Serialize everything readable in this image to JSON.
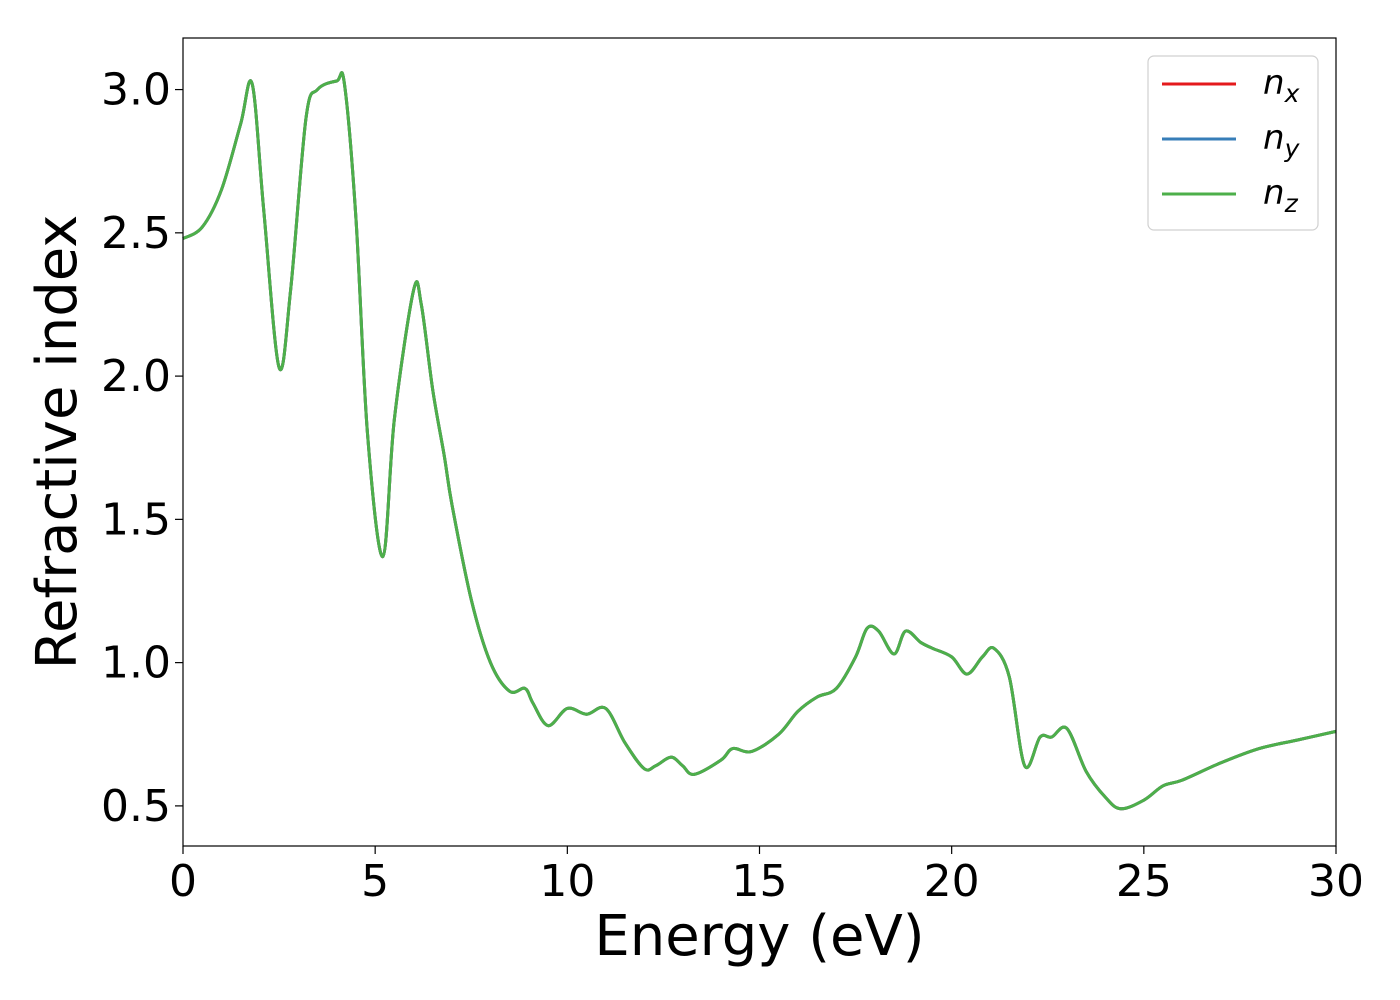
{
  "chart_data": {
    "type": "line",
    "title": "",
    "xlabel": "Energy (eV)",
    "ylabel": "Refractive index",
    "xlim": [
      0,
      30
    ],
    "ylim": [
      0.36,
      3.18
    ],
    "xticks": [
      0,
      5,
      10,
      15,
      20,
      25,
      30
    ],
    "xtick_labels": [
      "0",
      "5",
      "10",
      "15",
      "20",
      "25",
      "30"
    ],
    "yticks": [
      0.5,
      1.0,
      1.5,
      2.0,
      2.5,
      3.0
    ],
    "ytick_labels": [
      "0.5",
      "1.0",
      "1.5",
      "2.0",
      "2.5",
      "3.0"
    ],
    "grid": false,
    "legend_position": "top-right",
    "x": [
      0,
      0.5,
      1.0,
      1.5,
      1.8,
      2.1,
      2.5,
      2.8,
      3.2,
      3.5,
      4.0,
      4.2,
      4.5,
      4.8,
      5.2,
      5.5,
      6.0,
      6.2,
      6.5,
      6.8,
      7.0,
      7.5,
      8.0,
      8.5,
      8.9,
      9.1,
      9.5,
      10.0,
      10.5,
      11.0,
      11.5,
      12.0,
      12.3,
      12.7,
      13.0,
      13.3,
      14.0,
      14.3,
      14.8,
      15.5,
      16.0,
      16.5,
      17.0,
      17.5,
      17.8,
      18.1,
      18.5,
      18.8,
      19.2,
      19.5,
      20.0,
      20.4,
      20.8,
      21.1,
      21.5,
      21.9,
      22.3,
      22.6,
      23.0,
      23.5,
      24.0,
      24.4,
      25.0,
      25.5,
      26.0,
      27.0,
      28.0,
      29.0,
      30.0
    ],
    "series": [
      {
        "name": "n_x",
        "color": "#e41a1c",
        "values": [
          2.48,
          2.52,
          2.65,
          2.88,
          3.02,
          2.58,
          2.03,
          2.3,
          2.9,
          3.0,
          3.03,
          3.02,
          2.55,
          1.8,
          1.37,
          1.85,
          2.3,
          2.25,
          1.95,
          1.72,
          1.55,
          1.22,
          1.0,
          0.9,
          0.91,
          0.86,
          0.78,
          0.84,
          0.82,
          0.84,
          0.72,
          0.63,
          0.64,
          0.67,
          0.64,
          0.61,
          0.66,
          0.7,
          0.69,
          0.75,
          0.83,
          0.88,
          0.91,
          1.02,
          1.12,
          1.11,
          1.03,
          1.11,
          1.07,
          1.05,
          1.02,
          0.96,
          1.02,
          1.05,
          0.95,
          0.64,
          0.74,
          0.74,
          0.77,
          0.62,
          0.53,
          0.49,
          0.52,
          0.57,
          0.59,
          0.65,
          0.7,
          0.73,
          0.76
        ]
      },
      {
        "name": "n_y",
        "color": "#377eb8",
        "values": [
          2.48,
          2.52,
          2.65,
          2.88,
          3.02,
          2.58,
          2.03,
          2.3,
          2.9,
          3.0,
          3.03,
          3.02,
          2.55,
          1.8,
          1.37,
          1.85,
          2.3,
          2.25,
          1.95,
          1.72,
          1.55,
          1.22,
          1.0,
          0.9,
          0.91,
          0.86,
          0.78,
          0.84,
          0.82,
          0.84,
          0.72,
          0.63,
          0.64,
          0.67,
          0.64,
          0.61,
          0.66,
          0.7,
          0.69,
          0.75,
          0.83,
          0.88,
          0.91,
          1.02,
          1.12,
          1.11,
          1.03,
          1.11,
          1.07,
          1.05,
          1.02,
          0.96,
          1.02,
          1.05,
          0.95,
          0.64,
          0.74,
          0.74,
          0.77,
          0.62,
          0.53,
          0.49,
          0.52,
          0.57,
          0.59,
          0.65,
          0.7,
          0.73,
          0.76
        ]
      },
      {
        "name": "n_z",
        "color": "#4daf4a",
        "values": [
          2.48,
          2.52,
          2.65,
          2.88,
          3.02,
          2.58,
          2.03,
          2.3,
          2.9,
          3.0,
          3.03,
          3.02,
          2.55,
          1.8,
          1.37,
          1.85,
          2.3,
          2.25,
          1.95,
          1.72,
          1.55,
          1.22,
          1.0,
          0.9,
          0.91,
          0.86,
          0.78,
          0.84,
          0.82,
          0.84,
          0.72,
          0.63,
          0.64,
          0.67,
          0.64,
          0.61,
          0.66,
          0.7,
          0.69,
          0.75,
          0.83,
          0.88,
          0.91,
          1.02,
          1.12,
          1.11,
          1.03,
          1.11,
          1.07,
          1.05,
          1.02,
          0.96,
          1.02,
          1.05,
          0.95,
          0.64,
          0.74,
          0.74,
          0.77,
          0.62,
          0.53,
          0.49,
          0.52,
          0.57,
          0.59,
          0.65,
          0.7,
          0.73,
          0.76
        ]
      }
    ],
    "legend": [
      {
        "base": "n",
        "sub": "x",
        "color": "#e41a1c"
      },
      {
        "base": "n",
        "sub": "y",
        "color": "#377eb8"
      },
      {
        "base": "n",
        "sub": "z",
        "color": "#4daf4a"
      }
    ]
  }
}
